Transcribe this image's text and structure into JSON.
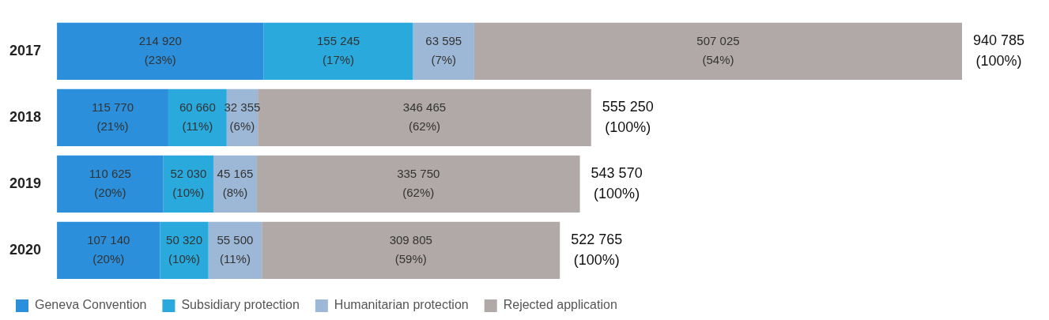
{
  "chart_data": {
    "type": "bar",
    "orientation": "horizontal",
    "stacked": true,
    "legend": "bottom left",
    "categories": [
      "2017",
      "2018",
      "2019",
      "2020"
    ],
    "series": [
      {
        "name": "Geneva Convention",
        "color": "#2b8fdb",
        "values": [
          214920,
          115770,
          110625,
          107140
        ],
        "value_labels": [
          "214 920\n(23%)",
          "115 770\n(21%)",
          "110 625\n(20%)",
          "107 140\n(20%)"
        ]
      },
      {
        "name": "Subsidiary protection",
        "color": "#29a9dc",
        "values": [
          155245,
          60660,
          52030,
          50320
        ],
        "value_labels": [
          "155 245\n(17%)",
          "60 660\n(11%)",
          "52 030\n(10%)",
          "50 320\n(10%)"
        ]
      },
      {
        "name": "Humanitarian protection",
        "color": "#9db8d6",
        "values": [
          63595,
          32355,
          45165,
          55500
        ],
        "value_labels": [
          "63 595\n(7%)",
          "32 355\n(6%)",
          "45 165\n(8%)",
          "55 500\n(11%)"
        ]
      },
      {
        "name": "Rejected application",
        "color": "#b0a9a7",
        "values": [
          507025,
          346465,
          335750,
          309805
        ],
        "value_labels": [
          "507 025\n(54%)",
          "346 465\n(62%)",
          "335 750\n(62%)",
          "309 805\n(59%)"
        ]
      }
    ],
    "totals": [
      "940 785\n(100%)",
      "555 250\n(100%)",
      "543 570\n(100%)",
      "522 765\n(100%)"
    ],
    "tick_labels": "y"
  }
}
